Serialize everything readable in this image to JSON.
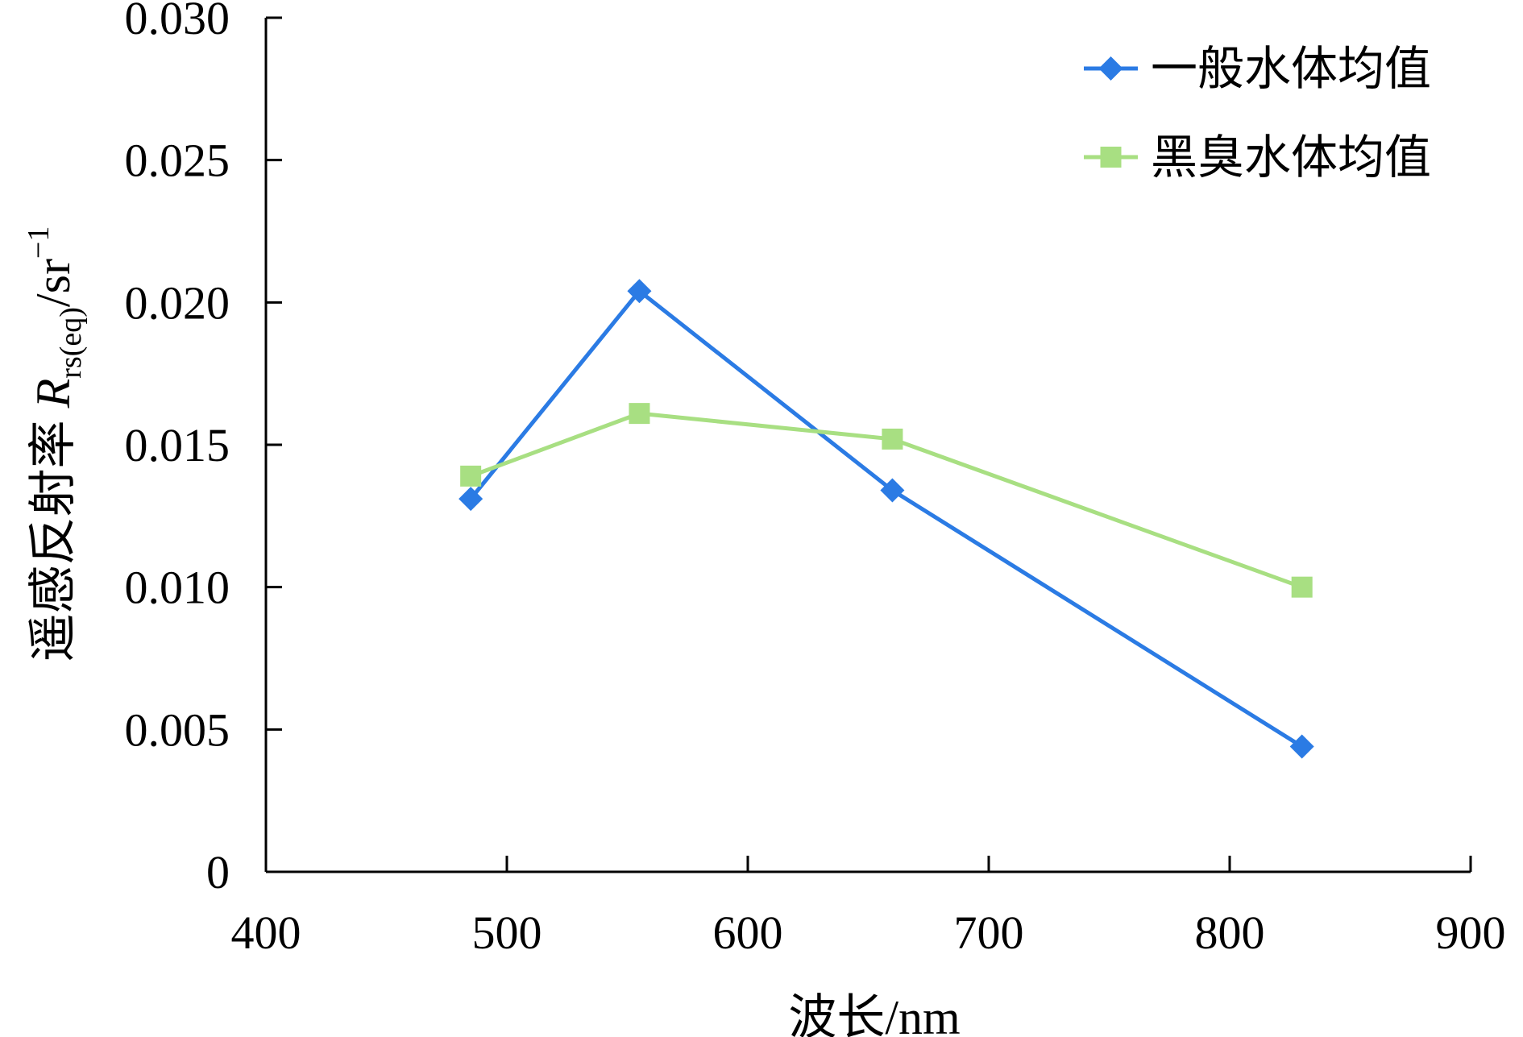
{
  "chart_data": {
    "type": "line",
    "title": "",
    "xlabel": "波长/nm",
    "ylabel": {
      "prefix": "遥感反射率 ",
      "symbol": "R",
      "subscript": "rs(eq)",
      "unit": "/sr",
      "superscript": "−1"
    },
    "xlim": [
      400,
      900
    ],
    "ylim": [
      0,
      0.03
    ],
    "xticks": [
      400,
      500,
      600,
      700,
      800,
      900
    ],
    "yticks": [
      0,
      0.005,
      0.01,
      0.015,
      0.02,
      0.025,
      0.03
    ],
    "xtick_labels": [
      "400",
      "500",
      "600",
      "700",
      "800",
      "900"
    ],
    "ytick_labels": [
      "0",
      "0.005",
      "0.010",
      "0.015",
      "0.020",
      "0.025",
      "0.030"
    ],
    "legend_position": "top-right",
    "series": [
      {
        "name": "一般水体均值",
        "color": "#2b7be4",
        "marker": "diamond",
        "x": [
          485,
          555,
          660,
          830
        ],
        "y": [
          0.0131,
          0.0204,
          0.0134,
          0.0044
        ]
      },
      {
        "name": "黑臭水体均值",
        "color": "#a8df82",
        "marker": "square",
        "x": [
          485,
          555,
          660,
          830
        ],
        "y": [
          0.0139,
          0.0161,
          0.0152,
          0.01
        ]
      }
    ]
  }
}
